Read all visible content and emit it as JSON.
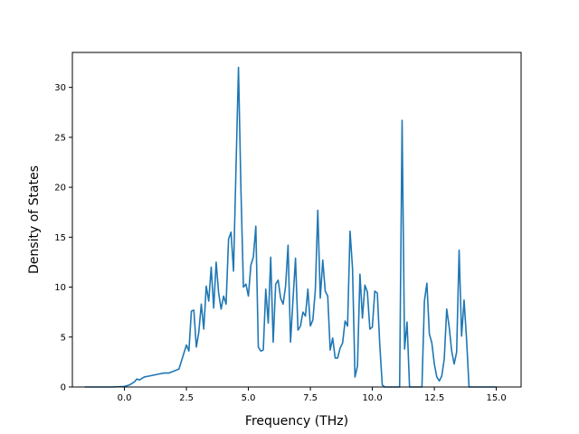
{
  "chart_data": {
    "type": "line",
    "title": "",
    "xlabel": "Frequency (THz)",
    "ylabel": "Density of States",
    "xlim": [
      -2.1,
      16.0
    ],
    "ylim": [
      0,
      33.5
    ],
    "xticks": [
      0.0,
      2.5,
      5.0,
      7.5,
      10.0,
      12.5,
      15.0
    ],
    "xtick_labels": [
      "0.0",
      "2.5",
      "5.0",
      "7.5",
      "10.0",
      "12.5",
      "15.0"
    ],
    "yticks": [
      0,
      5,
      10,
      15,
      20,
      25,
      30
    ],
    "ytick_labels": [
      "0",
      "5",
      "10",
      "15",
      "20",
      "25",
      "30"
    ],
    "grid": false,
    "legend": "none",
    "series_color": "#1f77b4",
    "series": [
      {
        "name": "",
        "x": [
          -1.6,
          -1.0,
          -0.5,
          0.0,
          0.2,
          0.4,
          0.5,
          0.6,
          0.8,
          1.0,
          1.2,
          1.4,
          1.6,
          1.8,
          2.0,
          2.2,
          2.3,
          2.5,
          2.6,
          2.7,
          2.8,
          2.9,
          3.0,
          3.1,
          3.2,
          3.3,
          3.4,
          3.5,
          3.6,
          3.7,
          3.8,
          3.9,
          4.0,
          4.1,
          4.2,
          4.3,
          4.4,
          4.5,
          4.6,
          4.7,
          4.8,
          4.9,
          5.0,
          5.1,
          5.2,
          5.3,
          5.4,
          5.5,
          5.6,
          5.7,
          5.8,
          5.9,
          6.0,
          6.1,
          6.2,
          6.3,
          6.4,
          6.5,
          6.6,
          6.7,
          6.8,
          6.9,
          7.0,
          7.1,
          7.2,
          7.3,
          7.4,
          7.5,
          7.6,
          7.7,
          7.8,
          7.9,
          8.0,
          8.1,
          8.2,
          8.3,
          8.4,
          8.5,
          8.6,
          8.7,
          8.8,
          8.9,
          9.0,
          9.1,
          9.2,
          9.3,
          9.4,
          9.5,
          9.6,
          9.7,
          9.8,
          9.9,
          10.0,
          10.1,
          10.2,
          10.3,
          10.4,
          10.5,
          10.6,
          10.8,
          11.0,
          11.1,
          11.2,
          11.3,
          11.4,
          11.5,
          11.6,
          11.8,
          12.0,
          12.1,
          12.2,
          12.3,
          12.4,
          12.5,
          12.6,
          12.7,
          12.8,
          12.9,
          13.0,
          13.1,
          13.2,
          13.3,
          13.4,
          13.5,
          13.6,
          13.7,
          13.8,
          13.9,
          14.0,
          14.5,
          15.0
        ],
        "y": [
          0,
          0,
          0,
          0.05,
          0.2,
          0.5,
          0.8,
          0.7,
          1.0,
          1.1,
          1.2,
          1.3,
          1.4,
          1.4,
          1.6,
          1.8,
          2.6,
          4.2,
          3.6,
          7.6,
          7.7,
          4.0,
          5.5,
          8.3,
          5.8,
          10.1,
          8.6,
          12.0,
          7.9,
          12.5,
          9.4,
          7.8,
          9.1,
          8.3,
          14.8,
          15.5,
          11.6,
          21.9,
          32.0,
          19.7,
          10.0,
          10.3,
          9.1,
          12.2,
          13.0,
          16.1,
          4.0,
          3.6,
          3.7,
          9.8,
          6.4,
          13.0,
          4.5,
          10.3,
          10.7,
          8.9,
          8.3,
          10.1,
          14.2,
          4.5,
          8.8,
          12.9,
          5.7,
          6.1,
          7.5,
          7.1,
          9.8,
          6.1,
          6.7,
          9.7,
          17.7,
          8.9,
          12.7,
          9.6,
          9.1,
          3.7,
          4.9,
          2.9,
          2.9,
          3.9,
          4.4,
          6.6,
          6.1,
          15.6,
          11.9,
          1.0,
          2.1,
          11.3,
          6.9,
          10.2,
          9.5,
          5.8,
          6.0,
          9.6,
          9.4,
          4.2,
          0.2,
          0,
          0,
          0,
          0,
          0,
          26.7,
          3.8,
          6.5,
          0,
          0,
          0,
          0,
          8.6,
          10.4,
          5.3,
          4.4,
          2.3,
          1.0,
          0.6,
          1.1,
          2.8,
          7.8,
          6.0,
          3.6,
          2.3,
          3.5,
          13.7,
          5.1,
          8.7,
          4.8,
          0,
          0,
          0,
          0
        ]
      }
    ]
  }
}
